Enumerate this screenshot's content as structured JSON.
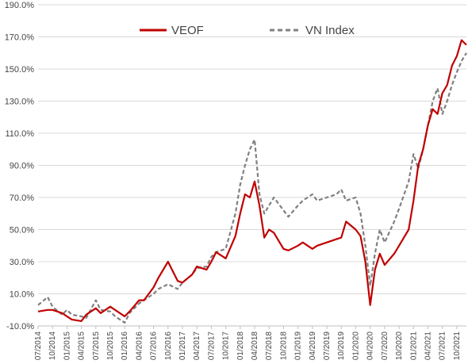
{
  "chart_data": {
    "type": "line",
    "ylim": [
      -10,
      190
    ],
    "ytick_values": [
      -10,
      10,
      30,
      50,
      70,
      90,
      110,
      130,
      150,
      170,
      190
    ],
    "ytick_labels": [
      "-10.0%",
      "10.0%",
      "30.0%",
      "50.0%",
      "70.0%",
      "90.0%",
      "110.0%",
      "130.0%",
      "150.0%",
      "170.0%",
      "190.0%"
    ],
    "xtick_labels": [
      "07/2014",
      "10/2014",
      "01/2015",
      "04/2015",
      "07/2015",
      "10/2015",
      "01/2016",
      "04/2016",
      "07/2016",
      "10/2016",
      "01/2017",
      "04/2017",
      "07/2017",
      "10/2017",
      "01/2018",
      "04/2018",
      "07/2018",
      "10/2018",
      "01/2019",
      "04/2019",
      "07/2019",
      "10/2019",
      "01/2020",
      "04/2020",
      "07/2020",
      "10/2020",
      "01/2021",
      "04/2021",
      "07/2021",
      "10/2021"
    ],
    "grid": true,
    "legend_position": "top-center",
    "colors": {
      "veof": "#c00000",
      "vnindex": "#808080",
      "grid": "#d9d9d9",
      "axis": "#bfbfbf"
    },
    "series": [
      {
        "name": "VEOF",
        "style": "solid",
        "x": [
          "07/2014",
          "09/2014",
          "10/2014",
          "12/2014",
          "01/2015",
          "02/2015",
          "04/2015",
          "05/2015",
          "07/2015",
          "08/2015",
          "10/2015",
          "11/2015",
          "01/2016",
          "02/2016",
          "04/2016",
          "05/2016",
          "07/2016",
          "08/2016",
          "10/2016",
          "12/2016",
          "01/2017",
          "03/2017",
          "04/2017",
          "06/2017",
          "07/2017",
          "08/2017",
          "10/2017",
          "12/2017",
          "01/2018",
          "02/2018",
          "03/2018",
          "04/2018",
          "05/2018",
          "06/2018",
          "07/2018",
          "08/2018",
          "10/2018",
          "11/2018",
          "01/2019",
          "02/2019",
          "04/2019",
          "05/2019",
          "07/2019",
          "09/2019",
          "10/2019",
          "11/2019",
          "01/2020",
          "02/2020",
          "03/2020",
          "04/2020",
          "05/2020",
          "06/2020",
          "07/2020",
          "09/2020",
          "10/2020",
          "12/2020",
          "01/2021",
          "02/2021",
          "03/2021",
          "04/2021",
          "05/2021",
          "06/2021",
          "07/2021",
          "08/2021",
          "09/2021",
          "10/2021",
          "11/2021",
          "12/2021"
        ],
        "values": [
          -1,
          0,
          0,
          -2,
          -4,
          -6,
          -7,
          -3,
          1,
          -2,
          2,
          0,
          -4,
          -1,
          6,
          6,
          14,
          20,
          30,
          18,
          17,
          22,
          27,
          25,
          30,
          36,
          32,
          46,
          60,
          72,
          70,
          80,
          65,
          45,
          50,
          48,
          38,
          37,
          40,
          42,
          38,
          40,
          42,
          44,
          45,
          55,
          50,
          46,
          30,
          3,
          25,
          35,
          28,
          35,
          40,
          50,
          68,
          90,
          100,
          115,
          125,
          122,
          135,
          140,
          152,
          158,
          168,
          165
        ]
      },
      {
        "name": "VN Index",
        "style": "dashed",
        "x": [
          "07/2014",
          "09/2014",
          "10/2014",
          "12/2014",
          "01/2015",
          "02/2015",
          "04/2015",
          "05/2015",
          "07/2015",
          "08/2015",
          "10/2015",
          "11/2015",
          "01/2016",
          "02/2016",
          "04/2016",
          "05/2016",
          "07/2016",
          "08/2016",
          "10/2016",
          "12/2016",
          "01/2017",
          "03/2017",
          "04/2017",
          "06/2017",
          "07/2017",
          "08/2017",
          "10/2017",
          "12/2017",
          "01/2018",
          "02/2018",
          "03/2018",
          "04/2018",
          "05/2018",
          "06/2018",
          "07/2018",
          "08/2018",
          "10/2018",
          "11/2018",
          "01/2019",
          "02/2019",
          "04/2019",
          "05/2019",
          "07/2019",
          "09/2019",
          "10/2019",
          "11/2019",
          "01/2020",
          "02/2020",
          "03/2020",
          "04/2020",
          "05/2020",
          "06/2020",
          "07/2020",
          "09/2020",
          "10/2020",
          "12/2020",
          "01/2021",
          "02/2021",
          "03/2021",
          "04/2021",
          "05/2021",
          "06/2021",
          "07/2021",
          "08/2021",
          "09/2021",
          "10/2021",
          "11/2021",
          "12/2021"
        ],
        "values": [
          3,
          8,
          2,
          -3,
          0,
          -3,
          -4,
          -5,
          6,
          0,
          -1,
          -4,
          -8,
          -2,
          4,
          6,
          10,
          13,
          16,
          13,
          17,
          22,
          26,
          27,
          33,
          36,
          38,
          60,
          78,
          90,
          100,
          106,
          72,
          60,
          65,
          70,
          62,
          58,
          65,
          68,
          72,
          68,
          70,
          72,
          75,
          68,
          70,
          60,
          40,
          15,
          35,
          50,
          42,
          55,
          63,
          80,
          97,
          88,
          100,
          115,
          130,
          138,
          122,
          130,
          140,
          148,
          155,
          160
        ]
      }
    ]
  }
}
